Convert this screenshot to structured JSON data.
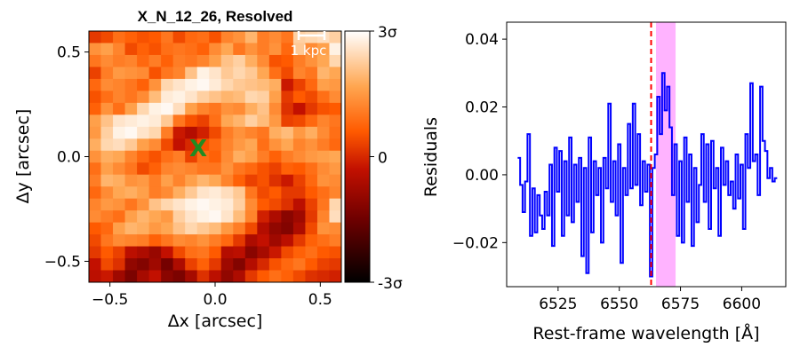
{
  "chart_data": [
    {
      "type": "heatmap",
      "title": "X_N_12_26, Resolved",
      "xlabel": "Δx [arcsec]",
      "ylabel": "Δy [arcsec]",
      "xlim": [
        -0.6,
        0.6
      ],
      "ylim": [
        -0.6,
        0.6
      ],
      "xticks": [
        -0.5,
        0.0,
        0.5
      ],
      "xtick_labels": [
        "−0.5",
        "0.0",
        "0.5"
      ],
      "yticks": [
        -0.5,
        0.0,
        0.5
      ],
      "ytick_labels": [
        "−0.5",
        "0.0",
        "0.5"
      ],
      "colormap": "gist_heat",
      "colorbar": {
        "range": [
          -3,
          3
        ],
        "tick_values": [
          3,
          0,
          -3
        ],
        "tick_labels": [
          "3σ",
          "0",
          "-3σ"
        ]
      },
      "scalebar_label": "1 kpc",
      "marker": {
        "symbol": "X",
        "x": -0.08,
        "y": 0.04,
        "color": "#228b22"
      },
      "grid": [
        [
          0.2,
          0.4,
          0.9,
          0.7,
          0.5,
          0.6,
          1.0,
          0.4,
          0.8,
          0.9,
          0.5,
          1.2,
          1.4,
          1.9,
          1.1,
          1.3,
          1.0,
          2.3,
          2.4,
          2.5,
          2.3
        ],
        [
          1.4,
          1.6,
          1.2,
          0.4,
          0.7,
          0.5,
          0.9,
          1.0,
          0.9,
          0.7,
          1.3,
          1.7,
          1.0,
          1.4,
          1.1,
          1.4,
          0.8,
          2.2,
          1.3,
          1.6,
          2.8
        ],
        [
          1.0,
          1.3,
          1.1,
          1.2,
          0.8,
          1.1,
          0.7,
          1.1,
          1.0,
          1.2,
          1.6,
          2.1,
          2.3,
          1.8,
          1.3,
          0.5,
          0.6,
          1.1,
          1.4,
          1.7,
          2.4
        ],
        [
          0.3,
          1.1,
          1.5,
          1.4,
          1.3,
          0.5,
          1.0,
          1.2,
          2.1,
          2.8,
          2.6,
          2.2,
          2.4,
          2.2,
          1.7,
          0.9,
          0.4,
          1.2,
          1.0,
          1.9,
          1.7
        ],
        [
          0.8,
          1.3,
          1.2,
          1.0,
          0.7,
          1.4,
          2.4,
          2.6,
          2.8,
          2.9,
          2.7,
          2.4,
          2.2,
          2.1,
          2.0,
          1.8,
          -0.2,
          0.3,
          0.8,
          1.6,
          1.5
        ],
        [
          0.5,
          0.9,
          1.2,
          1.0,
          1.3,
          2.0,
          2.7,
          2.8,
          2.6,
          2.3,
          2.1,
          1.9,
          2.0,
          2.4,
          2.3,
          1.6,
          0.2,
          0.6,
          0.4,
          0.9,
          1.3
        ],
        [
          0.7,
          1.4,
          0.9,
          1.6,
          2.4,
          2.8,
          2.9,
          2.5,
          1.6,
          1.2,
          1.0,
          1.4,
          1.3,
          1.8,
          2.1,
          1.3,
          0.1,
          -0.3,
          0.2,
          0.5,
          0.6
        ],
        [
          1.6,
          2.1,
          2.6,
          2.7,
          2.8,
          2.7,
          2.2,
          1.0,
          0.5,
          0.3,
          0.9,
          1.7,
          1.9,
          2.3,
          2.0,
          1.5,
          0.3,
          0.4,
          0.8,
          1.2,
          1.0
        ],
        [
          1.5,
          2.3,
          2.8,
          2.9,
          2.6,
          2.4,
          1.1,
          -0.2,
          -0.5,
          -0.1,
          0.4,
          1.1,
          1.4,
          1.2,
          1.0,
          1.8,
          2.0,
          1.5,
          1.8,
          1.3,
          0.9
        ],
        [
          1.8,
          2.4,
          2.5,
          2.2,
          1.6,
          1.3,
          0.4,
          -0.3,
          0.0,
          0.5,
          0.8,
          1.2,
          1.5,
          1.7,
          0.9,
          1.4,
          1.7,
          1.2,
          1.4,
          1.1,
          0.8
        ],
        [
          1.4,
          1.8,
          1.7,
          1.2,
          0.8,
          0.5,
          0.9,
          1.1,
          0.3,
          0.9,
          0.7,
          1.3,
          1.8,
          1.6,
          1.1,
          0.7,
          1.1,
          1.3,
          1.5,
          1.6,
          1.7
        ],
        [
          0.9,
          1.6,
          1.3,
          1.0,
          0.4,
          0.7,
          1.2,
          1.3,
          1.2,
          1.0,
          1.0,
          1.4,
          1.0,
          0.8,
          0.5,
          0.3,
          0.7,
          0.6,
          0.9,
          1.3,
          1.5
        ],
        [
          1.1,
          1.9,
          1.8,
          1.4,
          1.5,
          1.1,
          1.6,
          1.2,
          1.6,
          1.9,
          1.7,
          1.2,
          0.7,
          0.3,
          0.5,
          0.1,
          -0.2,
          0.3,
          0.8,
          1.4,
          1.3
        ],
        [
          0.8,
          1.3,
          1.7,
          1.8,
          1.6,
          1.1,
          1.3,
          1.8,
          2.2,
          2.6,
          2.7,
          2.5,
          2.2,
          1.0,
          0.4,
          0.6,
          0.2,
          0.2,
          0.6,
          0.9,
          1.2
        ],
        [
          1.2,
          1.5,
          1.4,
          1.0,
          1.4,
          2.1,
          2.4,
          2.6,
          2.8,
          2.9,
          2.8,
          2.7,
          2.3,
          1.3,
          0.6,
          0.4,
          0.1,
          -0.4,
          0.3,
          1.0,
          2.4
        ],
        [
          1.3,
          1.1,
          0.9,
          1.6,
          1.9,
          1.7,
          1.5,
          2.3,
          2.6,
          2.8,
          2.9,
          2.6,
          2.0,
          1.2,
          -0.1,
          -0.6,
          -1.1,
          -0.8,
          0.2,
          1.2,
          2.5
        ],
        [
          0.6,
          0.8,
          1.6,
          1.9,
          1.8,
          1.5,
          1.7,
          2.1,
          2.4,
          2.2,
          2.0,
          1.5,
          1.1,
          0.4,
          -0.5,
          -1.0,
          -1.2,
          -0.6,
          0.4,
          1.4,
          1.3
        ],
        [
          0.4,
          1.0,
          1.3,
          1.2,
          1.1,
          0.7,
          1.0,
          1.3,
          1.2,
          1.4,
          1.1,
          0.8,
          0.2,
          -0.6,
          -0.3,
          -0.8,
          -0.4,
          0.2,
          0.7,
          0.9,
          1.1
        ],
        [
          0.2,
          0.6,
          0.3,
          -0.4,
          -0.6,
          -0.9,
          -0.3,
          0.4,
          0.9,
          1.0,
          0.6,
          -0.5,
          -0.4,
          -1.1,
          -0.7,
          -0.2,
          0.4,
          0.7,
          0.9,
          0.6,
          0.5
        ],
        [
          -0.3,
          0.4,
          0.1,
          -1.0,
          -1.2,
          -0.8,
          -1.4,
          -0.6,
          0.3,
          0.7,
          0.2,
          -0.8,
          -1.2,
          -0.5,
          0.0,
          0.5,
          0.8,
          1.0,
          0.6,
          0.3,
          0.2
        ],
        [
          -0.4,
          -0.2,
          -0.8,
          -1.3,
          -0.7,
          -0.3,
          -1.1,
          -1.3,
          -0.7,
          0.1,
          -0.4,
          -1.0,
          -0.6,
          0.2,
          0.6,
          0.9,
          0.7,
          0.4,
          0.1,
          0.0,
          -0.1
        ]
      ]
    },
    {
      "type": "line",
      "xlabel": "Rest-frame wavelength [Å]",
      "ylabel": "Residuals",
      "xlim": [
        6504,
        6618
      ],
      "ylim": [
        -0.033,
        0.045
      ],
      "xticks": [
        6525,
        6550,
        6575,
        6600
      ],
      "xtick_labels": [
        "6525",
        "6550",
        "6575",
        "6600"
      ],
      "yticks": [
        -0.02,
        0.0,
        0.02,
        0.04
      ],
      "ytick_labels": [
        "−0.02",
        "0.00",
        "0.02",
        "0.04"
      ],
      "line_color": "#0000ff",
      "vline": {
        "x": 6563,
        "color": "#ff0000",
        "style": "dashed"
      },
      "shaded_span": {
        "x0": 6565,
        "x1": 6573,
        "color": "#ff80ff"
      },
      "steps": [
        [
          6509.0,
          0.005
        ],
        [
          6510.0,
          -0.003
        ],
        [
          6511.0,
          -0.011
        ],
        [
          6512.0,
          -0.002
        ],
        [
          6513.0,
          0.012
        ],
        [
          6514.0,
          -0.018
        ],
        [
          6515.0,
          -0.004
        ],
        [
          6516.0,
          -0.017
        ],
        [
          6517.0,
          -0.006
        ],
        [
          6518.0,
          -0.012
        ],
        [
          6519.0,
          -0.016
        ],
        [
          6520.0,
          -0.005
        ],
        [
          6521.0,
          -0.012
        ],
        [
          6522.0,
          0.003
        ],
        [
          6523.0,
          -0.021
        ],
        [
          6524.0,
          0.008
        ],
        [
          6525.0,
          -0.005
        ],
        [
          6526.0,
          0.007
        ],
        [
          6527.0,
          -0.018
        ],
        [
          6528.0,
          0.004
        ],
        [
          6529.0,
          -0.012
        ],
        [
          6530.0,
          0.011
        ],
        [
          6531.0,
          -0.014
        ],
        [
          6532.0,
          0.003
        ],
        [
          6533.0,
          -0.008
        ],
        [
          6534.0,
          0.005
        ],
        [
          6535.0,
          -0.024
        ],
        [
          6536.0,
          0.002
        ],
        [
          6537.0,
          -0.029
        ],
        [
          6538.0,
          0.011
        ],
        [
          6539.0,
          -0.017
        ],
        [
          6540.0,
          0.004
        ],
        [
          6541.0,
          -0.006
        ],
        [
          6542.0,
          0.002
        ],
        [
          6543.0,
          -0.02
        ],
        [
          6544.0,
          0.005
        ],
        [
          6545.0,
          -0.004
        ],
        [
          6546.0,
          0.021
        ],
        [
          6547.0,
          -0.008
        ],
        [
          6548.0,
          0.004
        ],
        [
          6549.0,
          -0.012
        ],
        [
          6550.0,
          0.009
        ],
        [
          6551.0,
          -0.026
        ],
        [
          6552.0,
          0.002
        ],
        [
          6553.0,
          -0.006
        ],
        [
          6554.0,
          0.015
        ],
        [
          6555.0,
          -0.004
        ],
        [
          6556.0,
          0.021
        ],
        [
          6557.0,
          -0.003
        ],
        [
          6558.0,
          0.012
        ],
        [
          6559.0,
          -0.009
        ],
        [
          6560.0,
          0.004
        ],
        [
          6561.0,
          -0.005
        ],
        [
          6562.0,
          0.003
        ],
        [
          6563.0,
          -0.03
        ],
        [
          6564.0,
          0.002
        ],
        [
          6565.0,
          0.006
        ],
        [
          6566.0,
          0.023
        ],
        [
          6567.0,
          0.012
        ],
        [
          6568.0,
          0.03
        ],
        [
          6569.0,
          0.019
        ],
        [
          6570.0,
          0.026
        ],
        [
          6571.0,
          0.014
        ],
        [
          6572.0,
          -0.006
        ],
        [
          6573.0,
          0.009
        ],
        [
          6574.0,
          -0.018
        ],
        [
          6575.0,
          0.004
        ],
        [
          6576.0,
          -0.02
        ],
        [
          6577.0,
          0.011
        ],
        [
          6578.0,
          -0.008
        ],
        [
          6579.0,
          0.006
        ],
        [
          6580.0,
          -0.021
        ],
        [
          6581.0,
          0.002
        ],
        [
          6582.0,
          -0.014
        ],
        [
          6583.0,
          -0.003
        ],
        [
          6584.0,
          0.012
        ],
        [
          6585.0,
          -0.008
        ],
        [
          6586.0,
          0.009
        ],
        [
          6587.0,
          -0.016
        ],
        [
          6588.0,
          0.01
        ],
        [
          6589.0,
          -0.004
        ],
        [
          6590.0,
          0.002
        ],
        [
          6591.0,
          -0.018
        ],
        [
          6592.0,
          0.008
        ],
        [
          6593.0,
          -0.003
        ],
        [
          6594.0,
          0.004
        ],
        [
          6595.0,
          -0.006
        ],
        [
          6596.0,
          -0.002
        ],
        [
          6597.0,
          -0.01
        ],
        [
          6598.0,
          0.006
        ],
        [
          6599.0,
          -0.007
        ],
        [
          6600.0,
          0.003
        ],
        [
          6601.0,
          -0.016
        ],
        [
          6602.0,
          0.012
        ],
        [
          6603.0,
          0.002
        ],
        [
          6604.0,
          0.027
        ],
        [
          6605.0,
          0.004
        ],
        [
          6606.0,
          0.006
        ],
        [
          6607.0,
          -0.006
        ],
        [
          6608.0,
          0.026
        ],
        [
          6609.0,
          0.01
        ],
        [
          6610.0,
          0.007
        ],
        [
          6611.0,
          -0.001
        ],
        [
          6612.0,
          0.002
        ],
        [
          6613.0,
          -0.002
        ],
        [
          6614.0,
          -0.001
        ]
      ]
    }
  ]
}
